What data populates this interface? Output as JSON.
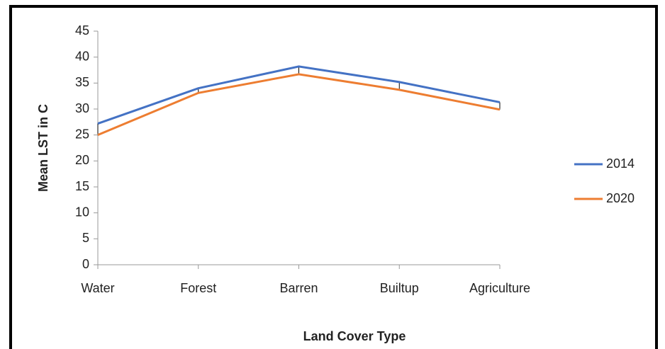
{
  "chart_data": {
    "type": "line",
    "xlabel": "Land Cover Type",
    "ylabel": "Mean LST in C",
    "categories": [
      "Water",
      "Forest",
      "Barren",
      "Builtup",
      "Agriculture"
    ],
    "series": [
      {
        "name": "2014",
        "color": "#4472c4",
        "values": [
          27.2,
          34,
          38.2,
          35.2,
          31.3
        ]
      },
      {
        "name": "2020",
        "color": "#ed7d31",
        "values": [
          25,
          33.1,
          36.7,
          33.7,
          29.9
        ]
      }
    ],
    "ylim": [
      0,
      45
    ],
    "yticks": [
      0,
      5,
      10,
      15,
      20,
      25,
      30,
      35,
      40,
      45
    ],
    "grid": false,
    "hi_low_lines": true,
    "legend": "right"
  }
}
